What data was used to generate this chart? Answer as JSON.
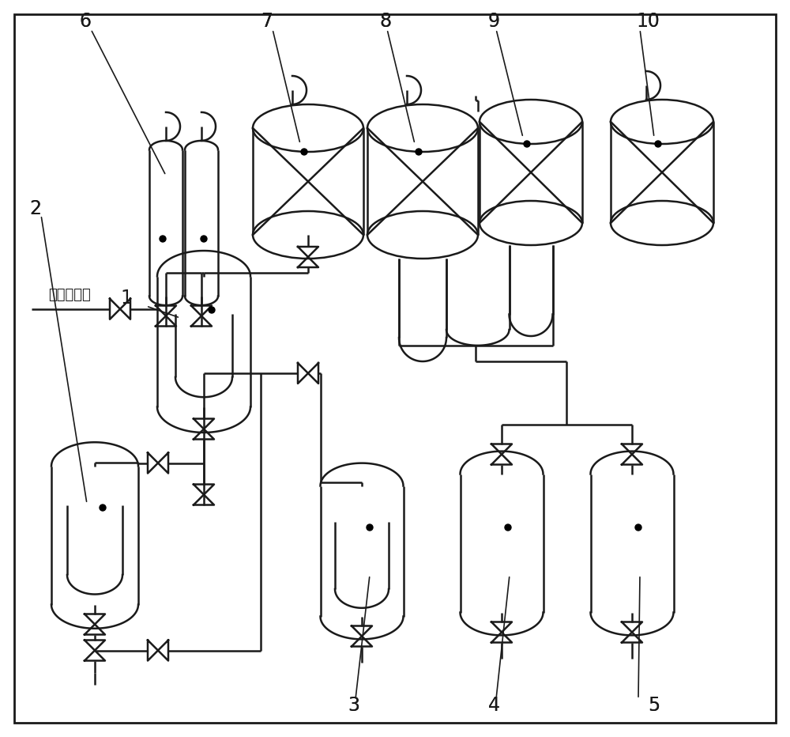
{
  "lc": "#1a1a1a",
  "lw": 1.8,
  "bg": "#ffffff"
}
